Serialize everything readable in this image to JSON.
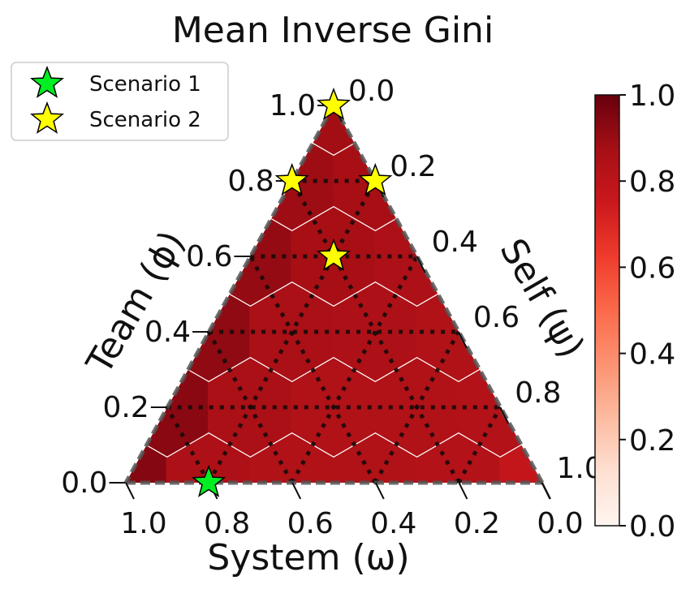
{
  "chart_data": {
    "type": "heatmap",
    "subtype": "ternary",
    "title": "Mean Inverse Gini",
    "axes": {
      "left": {
        "label": "Team (ϕ)",
        "ticks": [
          "0.0",
          "0.2",
          "0.4",
          "0.6",
          "0.8",
          "1.0"
        ]
      },
      "right": {
        "label": "Self (ψ)",
        "ticks": [
          "0.0",
          "0.2",
          "0.4",
          "0.6",
          "0.8",
          "1.0"
        ]
      },
      "bottom": {
        "label": "System (ω)",
        "ticks": [
          "1.0",
          "0.8",
          "0.6",
          "0.4",
          "0.2",
          "0.0"
        ]
      }
    },
    "grid": true,
    "colorbar": {
      "colormap": "Reds",
      "range": [
        0.0,
        1.0
      ],
      "ticks": [
        "0.0",
        "0.2",
        "0.4",
        "0.6",
        "0.8",
        "1.0"
      ],
      "stops": [
        "#fff5f0",
        "#fee0d2",
        "#fcbba1",
        "#fc9272",
        "#fb6a4a",
        "#ef3b2c",
        "#cb181d",
        "#a50f15",
        "#67000d"
      ]
    },
    "cells": [
      {
        "team": 0.0,
        "self": 0.0,
        "value": 0.94
      },
      {
        "team": 0.0,
        "self": 0.2,
        "value": 0.85
      },
      {
        "team": 0.0,
        "self": 0.4,
        "value": 0.84
      },
      {
        "team": 0.0,
        "self": 0.6,
        "value": 0.84
      },
      {
        "team": 0.0,
        "self": 0.8,
        "value": 0.83
      },
      {
        "team": 0.0,
        "self": 1.0,
        "value": 0.78
      },
      {
        "team": 0.2,
        "self": 0.0,
        "value": 0.93
      },
      {
        "team": 0.2,
        "self": 0.2,
        "value": 0.86
      },
      {
        "team": 0.2,
        "self": 0.4,
        "value": 0.84
      },
      {
        "team": 0.2,
        "self": 0.6,
        "value": 0.84
      },
      {
        "team": 0.2,
        "self": 0.8,
        "value": 0.83
      },
      {
        "team": 0.4,
        "self": 0.0,
        "value": 0.92
      },
      {
        "team": 0.4,
        "self": 0.2,
        "value": 0.86
      },
      {
        "team": 0.4,
        "self": 0.4,
        "value": 0.85
      },
      {
        "team": 0.4,
        "self": 0.6,
        "value": 0.84
      },
      {
        "team": 0.6,
        "self": 0.0,
        "value": 0.91
      },
      {
        "team": 0.6,
        "self": 0.2,
        "value": 0.87
      },
      {
        "team": 0.6,
        "self": 0.4,
        "value": 0.85
      },
      {
        "team": 0.8,
        "self": 0.0,
        "value": 0.89
      },
      {
        "team": 0.8,
        "self": 0.2,
        "value": 0.87
      },
      {
        "team": 1.0,
        "self": 0.0,
        "value": 0.88
      }
    ],
    "series": [
      {
        "name": "Scenario 1",
        "color": "#00ee22",
        "points": [
          {
            "team": 0.0,
            "self": 0.2,
            "system": 0.8
          }
        ]
      },
      {
        "name": "Scenario 2",
        "color": "#ffff00",
        "points": [
          {
            "team": 1.0,
            "self": 0.0,
            "system": 0.0
          },
          {
            "team": 0.8,
            "self": 0.0,
            "system": 0.2
          },
          {
            "team": 0.8,
            "self": 0.2,
            "system": 0.0
          },
          {
            "team": 0.6,
            "self": 0.2,
            "system": 0.2
          }
        ]
      }
    ],
    "legend": {
      "position": "top-left"
    }
  }
}
